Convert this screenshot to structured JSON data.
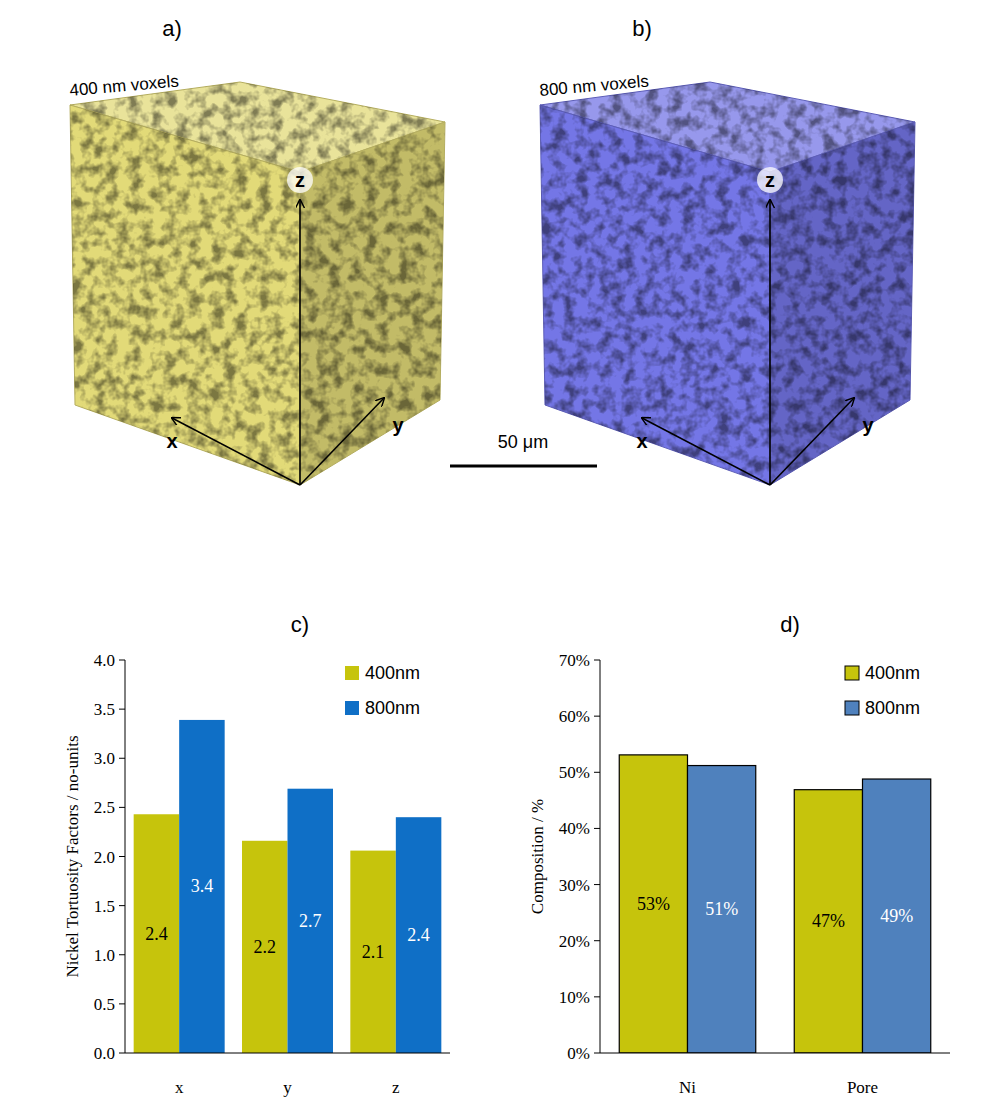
{
  "renders": [
    {
      "letter": "a)",
      "label": "400 nm voxels",
      "color": "#e2da78"
    },
    {
      "letter": "b)",
      "label": "800 nm voxels",
      "color": "#7476e6"
    }
  ],
  "render_axes": [
    "x",
    "y",
    "z"
  ],
  "scale_bar": "50 μm",
  "chart_data": [
    {
      "type": "bar",
      "title": "c)",
      "y_label": "Nickel Tortuosity Factors / no-units",
      "categories": [
        "x",
        "y",
        "z"
      ],
      "series": [
        {
          "name": "400nm",
          "color": "#c6c40c",
          "values": [
            2.43,
            2.16,
            2.06
          ],
          "value_labels": [
            "2.4",
            "2.2",
            "2.1"
          ]
        },
        {
          "name": "800nm",
          "color": "#0f6fc6",
          "values": [
            3.39,
            2.69,
            2.4
          ],
          "value_labels": [
            "3.4",
            "2.7",
            "2.4"
          ]
        }
      ],
      "ylim": [
        0,
        4
      ],
      "yticks": [
        {
          "value": 0,
          "label": "0.0"
        },
        {
          "value": 0.5,
          "label": "0.5"
        },
        {
          "value": 1,
          "label": "1.0"
        },
        {
          "value": 1.5,
          "label": "1.5"
        },
        {
          "value": 2,
          "label": "2.0"
        },
        {
          "value": 2.5,
          "label": "2.5"
        },
        {
          "value": 3,
          "label": "3.0"
        },
        {
          "value": 3.5,
          "label": "3.5"
        },
        {
          "value": 4,
          "label": "4.0"
        }
      ],
      "legend": "upper right",
      "data_labels": true,
      "grid": false
    },
    {
      "type": "bar",
      "title": "d)",
      "y_label": "Composition / %",
      "categories": [
        "Ni",
        "Pore"
      ],
      "series": [
        {
          "name": "400nm",
          "color": "#c6c40c",
          "values": [
            53.1,
            46.9
          ],
          "value_labels": [
            "53%",
            "47%"
          ]
        },
        {
          "name": "800nm",
          "color": "#4f81bd",
          "values": [
            51.2,
            48.8
          ],
          "value_labels": [
            "51%",
            "49%"
          ]
        }
      ],
      "ylim": [
        0,
        70
      ],
      "yticks": [
        {
          "value": 0,
          "label": "0%"
        },
        {
          "value": 10,
          "label": "10%"
        },
        {
          "value": 20,
          "label": "20%"
        },
        {
          "value": 30,
          "label": "30%"
        },
        {
          "value": 40,
          "label": "40%"
        },
        {
          "value": 50,
          "label": "50%"
        },
        {
          "value": 60,
          "label": "60%"
        },
        {
          "value": 70,
          "label": "70%"
        }
      ],
      "legend": "upper right",
      "data_labels": true,
      "grid": false
    }
  ]
}
